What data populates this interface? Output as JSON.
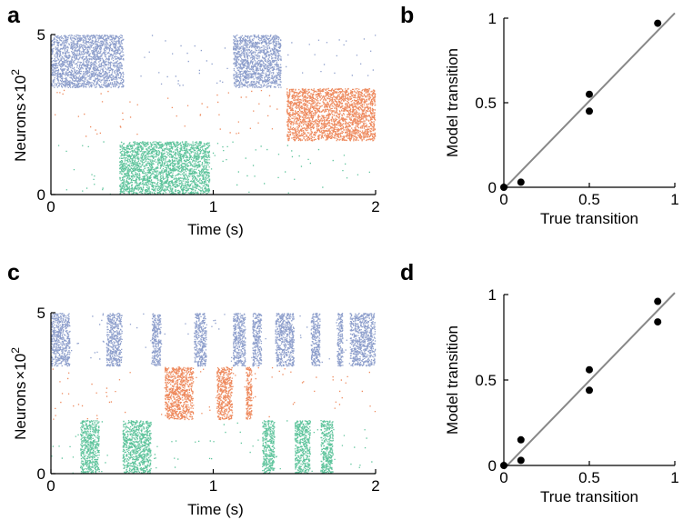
{
  "colors": {
    "blue": "#8E9FCC",
    "orange": "#EE8A5E",
    "green": "#5FC49C",
    "fit": "#888888",
    "dot": "#000000"
  },
  "panels": {
    "a": {
      "label": "a",
      "ylabel_main": "Neurons",
      "ylabel_times": "×",
      "ylabel_base": "10",
      "ylabel_exp": "2",
      "xlabel": "Time (s)"
    },
    "b": {
      "label": "b"
    },
    "c": {
      "label": "c",
      "ylabel_main": "Neurons",
      "ylabel_times": "×",
      "ylabel_base": "10",
      "ylabel_exp": "2",
      "xlabel": "Time (s)"
    },
    "d": {
      "label": "d"
    }
  },
  "chart_data": [
    {
      "panel": "a",
      "type": "scatter",
      "subtype": "raster",
      "title": "",
      "xlabel": "Time (s)",
      "ylabel": "Neurons×10^2",
      "xlim": [
        0,
        2
      ],
      "ylim": [
        0,
        5
      ],
      "xticks": [
        0,
        1,
        2
      ],
      "yticks": [
        0,
        5
      ],
      "xtick_labels": [
        "0",
        "1",
        "2"
      ],
      "ytick_labels": [
        "0",
        "5"
      ],
      "populations": [
        {
          "name": "blue",
          "color": "#8E9FCC",
          "y_range": [
            3.33,
            5.0
          ]
        },
        {
          "name": "orange",
          "color": "#EE8A5E",
          "y_range": [
            1.67,
            3.33
          ]
        },
        {
          "name": "green",
          "color": "#5FC49C",
          "y_range": [
            0.0,
            1.67
          ]
        }
      ],
      "active_epochs": [
        {
          "population": "blue",
          "start": 0.0,
          "end": 0.45
        },
        {
          "population": "green",
          "start": 0.42,
          "end": 0.98
        },
        {
          "population": "blue",
          "start": 1.12,
          "end": 1.42
        },
        {
          "population": "orange",
          "start": 1.45,
          "end": 2.0
        }
      ],
      "background_rate": 0.18
    },
    {
      "panel": "b",
      "type": "scatter",
      "title": "",
      "xlabel": "True transition",
      "ylabel": "Model transition",
      "xlim": [
        0,
        1
      ],
      "ylim": [
        0,
        1
      ],
      "xticks": [
        0,
        0.5,
        1
      ],
      "yticks": [
        0,
        0.5,
        1
      ],
      "xtick_labels": [
        "0",
        "0.5",
        "1"
      ],
      "ytick_labels": [
        "0",
        "0.5",
        "1"
      ],
      "x": [
        0.0,
        0.1,
        0.5,
        0.5,
        0.9
      ],
      "y": [
        0.0,
        0.03,
        0.55,
        0.45,
        0.97
      ],
      "fit_line": {
        "x": [
          0,
          1
        ],
        "y": [
          -0.01,
          1.03
        ]
      }
    },
    {
      "panel": "c",
      "type": "scatter",
      "subtype": "raster",
      "title": "",
      "xlabel": "Time (s)",
      "ylabel": "Neurons×10^2",
      "xlim": [
        0,
        2
      ],
      "ylim": [
        0,
        5
      ],
      "xticks": [
        0,
        1,
        2
      ],
      "yticks": [
        0,
        5
      ],
      "xtick_labels": [
        "0",
        "1",
        "2"
      ],
      "ytick_labels": [
        "0",
        "5"
      ],
      "populations": [
        {
          "name": "blue",
          "color": "#8E9FCC",
          "y_range": [
            3.33,
            5.0
          ]
        },
        {
          "name": "orange",
          "color": "#EE8A5E",
          "y_range": [
            1.67,
            3.33
          ]
        },
        {
          "name": "green",
          "color": "#5FC49C",
          "y_range": [
            0.0,
            1.67
          ]
        }
      ],
      "active_epochs": [
        {
          "population": "blue",
          "start": 0.0,
          "end": 0.12
        },
        {
          "population": "green",
          "start": 0.18,
          "end": 0.3
        },
        {
          "population": "blue",
          "start": 0.34,
          "end": 0.44
        },
        {
          "population": "green",
          "start": 0.44,
          "end": 0.62
        },
        {
          "population": "blue",
          "start": 0.62,
          "end": 0.68
        },
        {
          "population": "orange",
          "start": 0.7,
          "end": 0.88
        },
        {
          "population": "blue",
          "start": 0.88,
          "end": 0.96
        },
        {
          "population": "orange",
          "start": 1.02,
          "end": 1.12
        },
        {
          "population": "blue",
          "start": 1.12,
          "end": 1.2
        },
        {
          "population": "orange",
          "start": 1.2,
          "end": 1.24
        },
        {
          "population": "blue",
          "start": 1.24,
          "end": 1.3
        },
        {
          "population": "green",
          "start": 1.3,
          "end": 1.38
        },
        {
          "population": "blue",
          "start": 1.38,
          "end": 1.5
        },
        {
          "population": "green",
          "start": 1.5,
          "end": 1.6
        },
        {
          "population": "blue",
          "start": 1.6,
          "end": 1.66
        },
        {
          "population": "green",
          "start": 1.66,
          "end": 1.74
        },
        {
          "population": "blue",
          "start": 1.76,
          "end": 1.8
        },
        {
          "population": "blue",
          "start": 1.84,
          "end": 2.0
        }
      ],
      "background_rate": 0.2
    },
    {
      "panel": "d",
      "type": "scatter",
      "title": "",
      "xlabel": "True transition",
      "ylabel": "Model transition",
      "xlim": [
        0,
        1
      ],
      "ylim": [
        0,
        1
      ],
      "xticks": [
        0,
        0.5,
        1
      ],
      "yticks": [
        0,
        0.5,
        1
      ],
      "xtick_labels": [
        "0",
        "0.5",
        "1"
      ],
      "ytick_labels": [
        "0",
        "0.5",
        "1"
      ],
      "x": [
        0.0,
        0.1,
        0.1,
        0.5,
        0.5,
        0.9,
        0.9
      ],
      "y": [
        0.0,
        0.15,
        0.03,
        0.56,
        0.44,
        0.96,
        0.84
      ],
      "fit_line": {
        "x": [
          0,
          1
        ],
        "y": [
          -0.02,
          1.01
        ]
      }
    }
  ]
}
